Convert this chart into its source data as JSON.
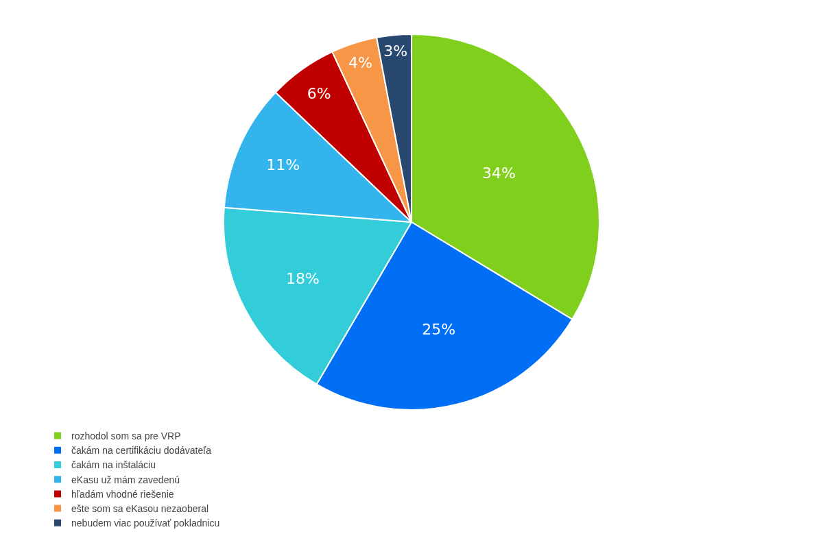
{
  "chart_data": {
    "type": "pie",
    "categories": [
      "rozhodol som sa pre VRP",
      "čakám na certifikáciu dodávateľa",
      "čakám na inštaláciu",
      "eKasu už mám zavedenú",
      "hľadám vhodné riešenie",
      "ešte som sa eKasou nezaoberal",
      "nebudem viac používať pokladnicu"
    ],
    "values": [
      34,
      25,
      18,
      11,
      6,
      4,
      3
    ],
    "value_labels": [
      "34%",
      "25%",
      "18%",
      "11%",
      "6%",
      "4%",
      "3%"
    ],
    "colors": [
      "#80cf1c",
      "#006ef5",
      "#33ccd9",
      "#33b4ec",
      "#c00000",
      "#f79646",
      "#294870"
    ],
    "legend": "bottom"
  }
}
